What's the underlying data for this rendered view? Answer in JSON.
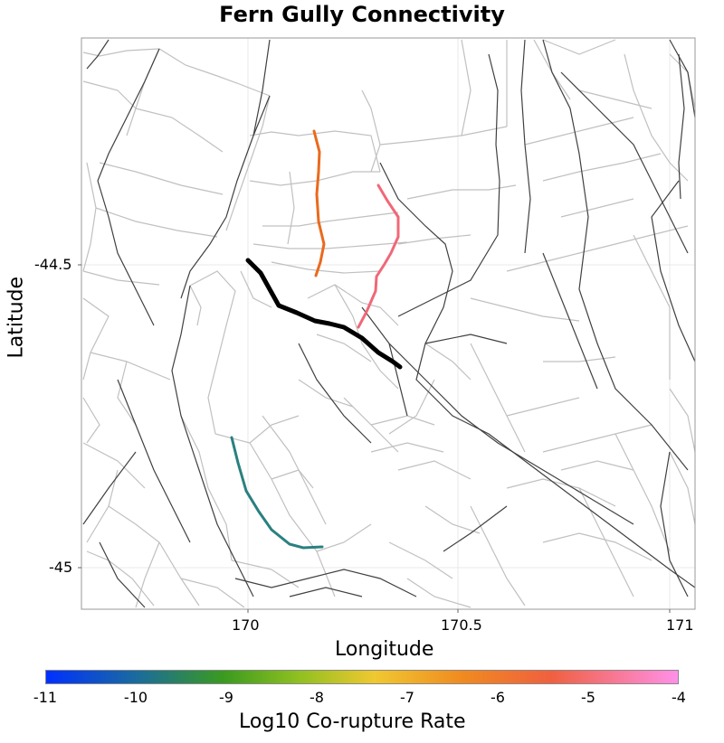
{
  "title": "Fern Gully Connectivity",
  "x_axis": {
    "label": "Longitude",
    "ticks": [
      "170",
      "170.5",
      "171"
    ]
  },
  "y_axis": {
    "label": "Latitude",
    "ticks": [
      "-44.5",
      "-45"
    ]
  },
  "colorbar": {
    "label": "Log10 Co-rupture Rate",
    "ticks": [
      "-11",
      "-10",
      "-9",
      "-8",
      "-7",
      "-6",
      "-5",
      "-4"
    ],
    "colors": [
      "#0030ff",
      "#1a6aa0",
      "#3a9a20",
      "#90c020",
      "#f0c830",
      "#f08a20",
      "#f06040",
      "#ff90e8"
    ]
  },
  "highlighted_sections": [
    {
      "name": "target",
      "color": "#000000"
    },
    {
      "name": "orange",
      "color": "#ea6a1d"
    },
    {
      "name": "pink",
      "color": "#f06878"
    },
    {
      "name": "teal",
      "color": "#2a8080"
    }
  ],
  "colors": {
    "dark_fault": "#404040",
    "light_fault": "#c0c0c0",
    "grid": "#e8e8e8",
    "frame": "#999999"
  }
}
